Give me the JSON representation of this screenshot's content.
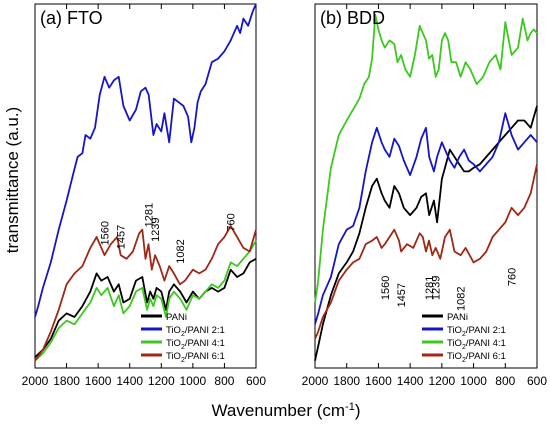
{
  "figure": {
    "ylabel": "transmittance (a.u.)",
    "xlabel_main": "Wavenumber (cm",
    "xlabel_sup": "-1",
    "xlabel_end": ")"
  },
  "legend_entries": [
    {
      "prefix": "PANi",
      "sub": "",
      "suffix": "",
      "color": "#000000"
    },
    {
      "prefix": "TiO",
      "sub": "2",
      "suffix": "/PANI 2:1",
      "color": "#1515c8"
    },
    {
      "prefix": "TiO",
      "sub": "2",
      "suffix": "/PANI 4:1",
      "color": "#3cc81e"
    },
    {
      "prefix": "TiO",
      "sub": "2",
      "suffix": "/PANI 6:1",
      "color": "#a02814"
    }
  ],
  "chart_data": [
    {
      "type": "line",
      "title": "(a) FTO",
      "xlabel": "Wavenumber (cm-1)",
      "ylabel": "transmittance (a.u.)",
      "xlim": [
        2000,
        600
      ],
      "x_reversed": true,
      "ylim": [
        0,
        100
      ],
      "y_ticks_labeled": false,
      "x_ticks": [
        2000,
        1800,
        1600,
        1400,
        1200,
        1000,
        800,
        600
      ],
      "annotations": [
        "1560",
        "1457",
        "1281",
        "1239",
        "1082",
        "760"
      ],
      "annotation_x": [
        1560,
        1457,
        1281,
        1239,
        1082,
        760
      ],
      "annotation_y": [
        37,
        36,
        42,
        38,
        32,
        40
      ],
      "series": [
        {
          "name": "PANi",
          "color": "#000000",
          "x": [
            2000,
            1950,
            1900,
            1850,
            1800,
            1750,
            1700,
            1650,
            1610,
            1580,
            1540,
            1500,
            1470,
            1440,
            1400,
            1360,
            1320,
            1290,
            1270,
            1250,
            1230,
            1200,
            1170,
            1150,
            1120,
            1080,
            1040,
            1000,
            960,
            920,
            880,
            840,
            800,
            760,
            720,
            680,
            640,
            600
          ],
          "y": [
            3,
            5,
            8,
            13,
            15,
            14,
            17,
            21,
            26,
            24,
            25,
            21,
            23,
            18,
            19,
            24,
            25,
            18,
            21,
            19,
            22,
            21,
            16,
            21,
            23,
            21,
            18,
            21,
            19,
            21,
            22,
            21,
            22,
            27,
            25,
            26,
            29,
            30
          ]
        },
        {
          "name": "TiO2/PANI 2:1",
          "color": "#1515c8",
          "x": [
            2000,
            1980,
            1950,
            1900,
            1850,
            1800,
            1760,
            1730,
            1700,
            1680,
            1650,
            1620,
            1590,
            1560,
            1530,
            1500,
            1470,
            1440,
            1400,
            1360,
            1330,
            1300,
            1280,
            1250,
            1230,
            1200,
            1180,
            1150,
            1120,
            1090,
            1060,
            1030,
            1010,
            990,
            970,
            950,
            920,
            880,
            840,
            800,
            760,
            720,
            700,
            680,
            650,
            620,
            600
          ],
          "y": [
            14,
            17,
            22,
            29,
            38,
            46,
            53,
            58,
            59,
            64,
            63,
            66,
            75,
            80,
            77,
            79,
            80,
            72,
            68,
            71,
            76,
            77,
            75,
            64,
            67,
            65,
            70,
            62,
            74,
            73,
            72,
            69,
            62,
            66,
            73,
            76,
            78,
            84,
            85,
            87,
            90,
            94,
            92,
            96,
            94,
            98,
            100
          ]
        },
        {
          "name": "TiO2/PANI 4:1",
          "color": "#3cc81e",
          "x": [
            2000,
            1950,
            1900,
            1850,
            1800,
            1750,
            1700,
            1650,
            1610,
            1580,
            1540,
            1500,
            1470,
            1440,
            1400,
            1360,
            1320,
            1290,
            1270,
            1250,
            1230,
            1200,
            1170,
            1150,
            1120,
            1080,
            1040,
            1000,
            960,
            920,
            880,
            840,
            800,
            760,
            720,
            680,
            640,
            600
          ],
          "y": [
            2,
            4,
            7,
            11,
            13,
            12,
            15,
            18,
            22,
            20,
            22,
            17,
            20,
            15,
            17,
            21,
            22,
            16,
            19,
            17,
            20,
            19,
            14,
            19,
            21,
            19,
            16,
            20,
            19,
            21,
            23,
            22,
            24,
            29,
            28,
            30,
            32,
            35
          ]
        },
        {
          "name": "TiO2/PANI 6:1",
          "color": "#a02814",
          "x": [
            2000,
            1950,
            1900,
            1850,
            1800,
            1750,
            1700,
            1650,
            1610,
            1560,
            1520,
            1480,
            1457,
            1420,
            1380,
            1340,
            1320,
            1300,
            1281,
            1260,
            1239,
            1210,
            1180,
            1150,
            1120,
            1082,
            1050,
            1000,
            960,
            920,
            880,
            840,
            800,
            760,
            720,
            680,
            640,
            600
          ],
          "y": [
            2,
            5,
            10,
            16,
            23,
            26,
            28,
            33,
            36,
            31,
            34,
            36,
            31,
            30,
            32,
            37,
            38,
            30,
            34,
            27,
            31,
            28,
            24,
            28,
            26,
            23,
            24,
            27,
            26,
            27,
            30,
            34,
            36,
            39,
            36,
            33,
            32,
            38
          ]
        }
      ]
    },
    {
      "type": "line",
      "title": "(b) BDD",
      "xlabel": "Wavenumber (cm-1)",
      "ylabel": "transmittance (a.u.)",
      "xlim": [
        2000,
        600
      ],
      "x_reversed": true,
      "ylim": [
        0,
        100
      ],
      "y_ticks_labeled": false,
      "x_ticks": [
        2000,
        1800,
        1600,
        1400,
        1200,
        1000,
        800,
        600
      ],
      "annotations": [
        "1560",
        "1457",
        "1281",
        "1239",
        "1082",
        "760"
      ],
      "annotation_x": [
        1560,
        1457,
        1281,
        1239,
        1082,
        760
      ],
      "annotation_y": [
        22,
        20,
        22,
        22,
        19,
        25
      ],
      "series": [
        {
          "name": "PANi",
          "color": "#000000",
          "x": [
            2000,
            1980,
            1950,
            1900,
            1850,
            1800,
            1760,
            1720,
            1680,
            1640,
            1610,
            1580,
            1560,
            1530,
            1500,
            1470,
            1440,
            1400,
            1360,
            1330,
            1300,
            1280,
            1250,
            1230,
            1200,
            1180,
            1150,
            1120,
            1090,
            1060,
            1030,
            1000,
            960,
            920,
            880,
            840,
            800,
            760,
            720,
            680,
            640,
            600
          ],
          "y": [
            2,
            6,
            12,
            20,
            26,
            29,
            32,
            37,
            44,
            50,
            52,
            48,
            46,
            44,
            50,
            48,
            44,
            42,
            44,
            47,
            48,
            42,
            46,
            40,
            52,
            55,
            60,
            58,
            56,
            54,
            54,
            55,
            56,
            58,
            60,
            62,
            64,
            66,
            68,
            68,
            66,
            72
          ]
        },
        {
          "name": "TiO2/PANI 2:1",
          "color": "#1515c8",
          "x": [
            2000,
            1980,
            1950,
            1900,
            1850,
            1800,
            1760,
            1720,
            1680,
            1640,
            1610,
            1580,
            1560,
            1530,
            1500,
            1470,
            1440,
            1400,
            1360,
            1330,
            1300,
            1280,
            1250,
            1230,
            1200,
            1180,
            1150,
            1120,
            1090,
            1060,
            1030,
            1000,
            960,
            920,
            880,
            840,
            800,
            760,
            720,
            680,
            640,
            600
          ],
          "y": [
            12,
            15,
            20,
            25,
            34,
            38,
            39,
            44,
            54,
            62,
            66,
            62,
            60,
            58,
            63,
            61,
            57,
            53,
            58,
            63,
            66,
            58,
            54,
            58,
            62,
            60,
            57,
            55,
            58,
            60,
            57,
            56,
            54,
            56,
            58,
            62,
            70,
            64,
            60,
            62,
            64,
            62
          ]
        },
        {
          "name": "TiO2/PANI 4:1",
          "color": "#3cc81e",
          "x": [
            2000,
            1980,
            1950,
            1900,
            1850,
            1800,
            1760,
            1720,
            1690,
            1660,
            1640,
            1620,
            1600,
            1580,
            1560,
            1530,
            1500,
            1480,
            1457,
            1430,
            1400,
            1370,
            1340,
            1320,
            1300,
            1281,
            1260,
            1239,
            1220,
            1200,
            1180,
            1160,
            1140,
            1110,
            1082,
            1050,
            1020,
            980,
            940,
            900,
            860,
            830,
            800,
            760,
            720,
            690,
            660,
            640,
            620,
            600
          ],
          "y": [
            18,
            24,
            38,
            55,
            64,
            68,
            71,
            74,
            78,
            80,
            85,
            97,
            93,
            90,
            88,
            90,
            89,
            84,
            86,
            82,
            80,
            86,
            94,
            92,
            90,
            85,
            86,
            80,
            82,
            90,
            92,
            90,
            84,
            84,
            80,
            84,
            82,
            78,
            80,
            84,
            86,
            82,
            95,
            86,
            88,
            96,
            90,
            92,
            93,
            92
          ]
        },
        {
          "name": "TiO2/PANI 6:1",
          "color": "#a02814",
          "x": [
            2000,
            1980,
            1950,
            1900,
            1850,
            1800,
            1760,
            1720,
            1680,
            1640,
            1610,
            1580,
            1560,
            1530,
            1500,
            1470,
            1457,
            1420,
            1380,
            1340,
            1320,
            1300,
            1281,
            1260,
            1239,
            1210,
            1180,
            1150,
            1120,
            1082,
            1050,
            1000,
            960,
            920,
            880,
            840,
            800,
            760,
            720,
            680,
            640,
            600
          ],
          "y": [
            8,
            10,
            14,
            18,
            24,
            27,
            29,
            30,
            34,
            35,
            36,
            33,
            34,
            36,
            38,
            35,
            32,
            34,
            33,
            37,
            36,
            32,
            35,
            31,
            33,
            30,
            36,
            38,
            32,
            31,
            33,
            29,
            30,
            32,
            36,
            38,
            40,
            44,
            42,
            44,
            48,
            56
          ]
        }
      ]
    }
  ]
}
